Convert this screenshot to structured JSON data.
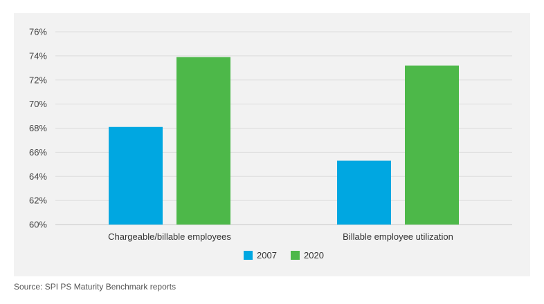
{
  "chart_data": {
    "type": "bar",
    "categories": [
      "Chargeable/billable employees",
      "Billable employee utilization"
    ],
    "series": [
      {
        "name": "2007",
        "color": "#00a7e1",
        "values": [
          68.1,
          65.3
        ]
      },
      {
        "name": "2020",
        "color": "#4db849",
        "values": [
          73.9,
          73.2
        ]
      }
    ],
    "ylim": [
      60,
      76
    ],
    "yticks": [
      "60%",
      "62%",
      "64%",
      "66%",
      "68%",
      "70%",
      "72%",
      "74%",
      "76%"
    ],
    "grid": true,
    "legend_position": "bottom"
  },
  "source": "Source: SPI PS Maturity Benchmark reports"
}
